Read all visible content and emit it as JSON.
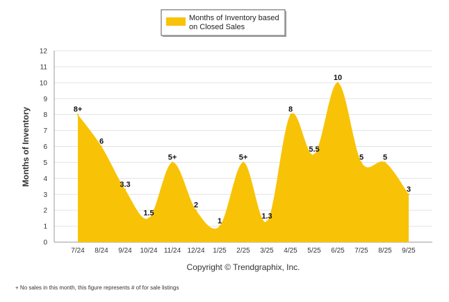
{
  "chart_data": {
    "type": "area",
    "title": "",
    "xlabel": "",
    "ylabel": "Months of Inventory",
    "ylim": [
      0,
      12
    ],
    "yticks": [
      "0",
      "1",
      "2",
      "3",
      "4",
      "5",
      "6",
      "7",
      "8",
      "9",
      "10",
      "11",
      "12"
    ],
    "categories": [
      "7/24",
      "8/24",
      "9/24",
      "10/24",
      "11/24",
      "12/24",
      "1/25",
      "2/25",
      "3/25",
      "4/25",
      "5/25",
      "6/25",
      "7/25",
      "8/25",
      "9/25"
    ],
    "series": [
      {
        "name": "Months of Inventory based on Closed Sales",
        "values": [
          8,
          6,
          3.3,
          1.5,
          5,
          2,
          1,
          5,
          1.3,
          8,
          5.5,
          10,
          5,
          5,
          3
        ],
        "labels": [
          "8+",
          "6",
          "3.3",
          "1.5",
          "5+",
          "2",
          "1",
          "5+",
          "1.3",
          "8",
          "5.5",
          "10",
          "5",
          "5",
          "3"
        ],
        "color": "#F8C307"
      }
    ],
    "legend": {
      "line1": "Months of Inventory based",
      "line2": "on Closed Sales",
      "position": "top"
    },
    "grid": true
  },
  "copyright": "Copyright © Trendgraphix, Inc.",
  "footnote": "+ No sales in this month, this figure represents # of for sale listings"
}
